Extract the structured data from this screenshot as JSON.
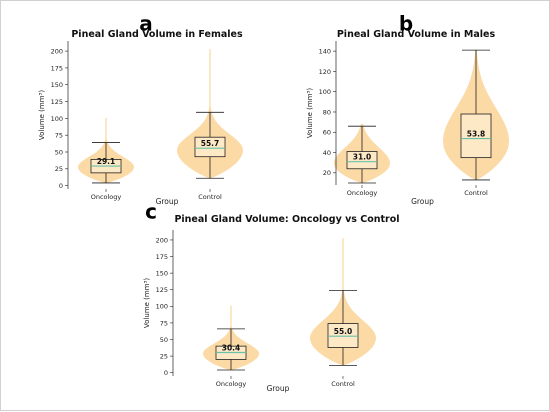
{
  "panels": [
    {
      "letter": "a",
      "chart_data": {
        "type": "violin",
        "title": "Pineal Gland Volume in Females",
        "xlabel": "Group",
        "ylabel": "Volume (mm³)",
        "ylim": [
          -5,
          215
        ],
        "yticks": [
          0,
          25,
          50,
          75,
          100,
          125,
          150,
          175,
          200
        ],
        "categories": [
          "Oncology",
          "Control"
        ],
        "series": [
          {
            "category": "Oncology",
            "min": 4,
            "q1": 19,
            "median": 29.1,
            "q3": 39,
            "max": 64,
            "data_max": 101,
            "label": "29.1"
          },
          {
            "category": "Control",
            "min": 11,
            "q1": 43,
            "median": 55.7,
            "q3": 72,
            "max": 109,
            "data_max": 203,
            "label": "55.7"
          }
        ]
      }
    },
    {
      "letter": "b",
      "chart_data": {
        "type": "violin",
        "title": "Pineal Gland Volume in Males",
        "xlabel": "Group",
        "ylabel": "Volume (mm³)",
        "ylim": [
          8,
          150
        ],
        "yticks": [
          20,
          40,
          60,
          80,
          100,
          120,
          140
        ],
        "categories": [
          "Oncology",
          "Control"
        ],
        "series": [
          {
            "category": "Oncology",
            "min": 10,
            "q1": 24,
            "median": 31.0,
            "q3": 41,
            "max": 66,
            "data_max": 68,
            "label": "31.0"
          },
          {
            "category": "Control",
            "min": 13,
            "q1": 35,
            "median": 53.8,
            "q3": 78,
            "max": 141,
            "data_max": 141,
            "label": "53.8"
          }
        ]
      }
    },
    {
      "letter": "c",
      "chart_data": {
        "type": "violin",
        "title": "Pineal Gland Volume: Oncology vs Control",
        "xlabel": "Group",
        "ylabel": "Volume (mm³)",
        "ylim": [
          -5,
          215
        ],
        "yticks": [
          0,
          25,
          50,
          75,
          100,
          125,
          150,
          175,
          200
        ],
        "categories": [
          "Oncology",
          "Control"
        ],
        "series": [
          {
            "category": "Oncology",
            "min": 4,
            "q1": 20,
            "median": 30.4,
            "q3": 40,
            "max": 66,
            "data_max": 101,
            "label": "30.4"
          },
          {
            "category": "Control",
            "min": 11,
            "q1": 38,
            "median": 55.0,
            "q3": 74,
            "max": 124,
            "data_max": 203,
            "label": "55.0"
          }
        ]
      }
    }
  ],
  "colors": {
    "violin": "#fbd8a0",
    "box_fill": "#fde9c6",
    "median_line": "#6cc0a8",
    "axis": "#222222"
  }
}
